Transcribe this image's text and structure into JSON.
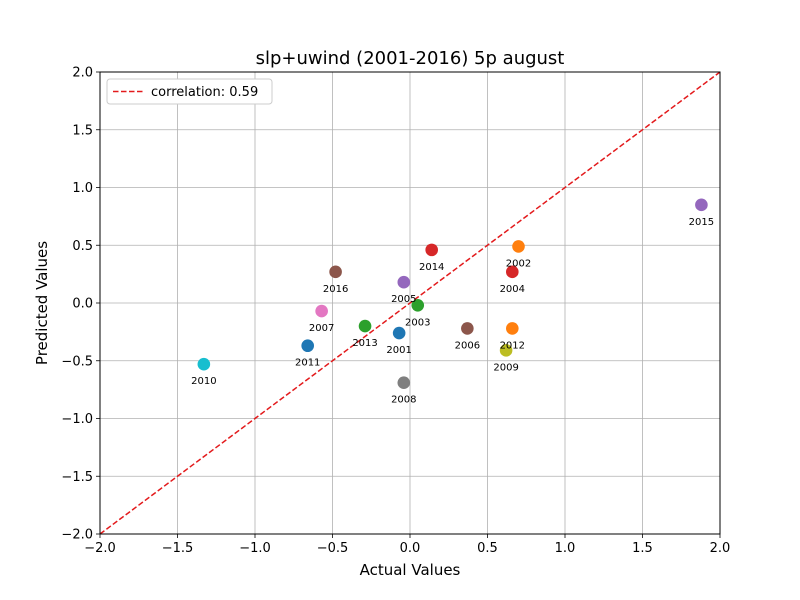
{
  "chart_data": {
    "type": "scatter",
    "title": "slp+uwind (2001-2016) 5p august",
    "xlabel": "Actual Values",
    "ylabel": "Predicted Values",
    "xlim": [
      -2.0,
      2.0
    ],
    "ylim": [
      -2.0,
      2.0
    ],
    "x_ticks": [
      "−2.0",
      "−1.5",
      "−1.0",
      "−0.5",
      "0.0",
      "0.5",
      "1.0",
      "1.5",
      "2.0"
    ],
    "y_ticks": [
      "−2.0",
      "−1.5",
      "−1.0",
      "−0.5",
      "0.0",
      "0.5",
      "1.0",
      "1.5",
      "2.0"
    ],
    "grid": true,
    "legend": {
      "placement": "top-left",
      "entries": [
        "correlation: 0.59"
      ]
    },
    "reference_line": {
      "style": "dashed",
      "color": "#e31a1c",
      "x": [
        -2.0,
        2.0
      ],
      "y": [
        -2.0,
        2.0
      ]
    },
    "points": [
      {
        "label": "2001",
        "x": -0.07,
        "y": -0.26,
        "color": "#1f77b4"
      },
      {
        "label": "2002",
        "x": 0.7,
        "y": 0.49,
        "color": "#ff7f0e"
      },
      {
        "label": "2003",
        "x": 0.05,
        "y": -0.02,
        "color": "#2ca02c"
      },
      {
        "label": "2004",
        "x": 0.66,
        "y": 0.27,
        "color": "#d62728"
      },
      {
        "label": "2005",
        "x": -0.04,
        "y": 0.18,
        "color": "#9467bd"
      },
      {
        "label": "2006",
        "x": 0.37,
        "y": -0.22,
        "color": "#8c564b"
      },
      {
        "label": "2007",
        "x": -0.57,
        "y": -0.07,
        "color": "#e377c2"
      },
      {
        "label": "2008",
        "x": -0.04,
        "y": -0.69,
        "color": "#7f7f7f"
      },
      {
        "label": "2009",
        "x": 0.62,
        "y": -0.41,
        "color": "#bcbd22"
      },
      {
        "label": "2010",
        "x": -1.33,
        "y": -0.53,
        "color": "#17becf"
      },
      {
        "label": "2011",
        "x": -0.66,
        "y": -0.37,
        "color": "#1f77b4"
      },
      {
        "label": "2012",
        "x": 0.66,
        "y": -0.22,
        "color": "#ff7f0e"
      },
      {
        "label": "2013",
        "x": -0.29,
        "y": -0.2,
        "color": "#2ca02c"
      },
      {
        "label": "2014",
        "x": 0.14,
        "y": 0.46,
        "color": "#d62728"
      },
      {
        "label": "2015",
        "x": 1.88,
        "y": 0.85,
        "color": "#9467bd"
      },
      {
        "label": "2016",
        "x": -0.48,
        "y": 0.27,
        "color": "#8c564b"
      }
    ]
  }
}
